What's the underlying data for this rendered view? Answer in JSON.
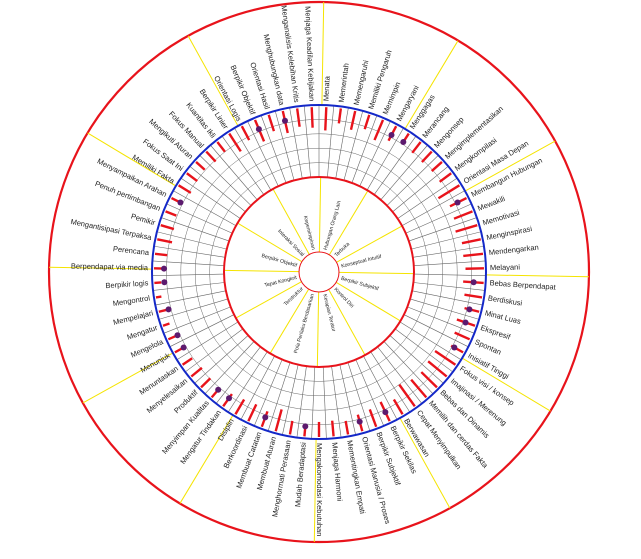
{
  "colors": {
    "outer_ring": "#e8131b",
    "blue_ring": "#1428c8",
    "sector_line": "#f5e400",
    "grid": "#666666",
    "bar": "#e8131b",
    "dot": "#5c1a6e",
    "text": "#222222"
  },
  "traits": [
    {
      "label": "Menata",
      "level": 0.34,
      "dot": false
    },
    {
      "label": "Memerintah",
      "level": 0.22,
      "dot": false
    },
    {
      "label": "Memengaruhi",
      "level": 0.28,
      "dot": false
    },
    {
      "label": "Memiliki Pengaruh",
      "level": 0.22,
      "dot": false
    },
    {
      "label": "Memimpin",
      "level": 0.32,
      "dot": false
    },
    {
      "label": "Mengaryani",
      "level": 0.24,
      "dot": true
    },
    {
      "label": "Menggagas",
      "level": 0.17,
      "dot": true
    },
    {
      "label": "Merancang",
      "level": 0.2,
      "dot": false
    },
    {
      "label": "Mengonsep",
      "level": 0.21,
      "dot": false
    },
    {
      "label": "Mengimplementasikan",
      "level": 0.2,
      "dot": false
    },
    {
      "label": "Mengkompilasi",
      "level": 0.21,
      "dot": false
    },
    {
      "label": "Orientasi Masa Depan",
      "level": 0.36,
      "dot": false
    },
    {
      "label": "Membangun Hubungan",
      "level": 0.27,
      "dot": true
    },
    {
      "label": "Mewakili",
      "level": 0.29,
      "dot": false
    },
    {
      "label": "Memotivasi",
      "level": 0.33,
      "dot": false
    },
    {
      "label": "Menginspirasi",
      "level": 0.28,
      "dot": false
    },
    {
      "label": "Mendengarkan",
      "level": 0.29,
      "dot": false
    },
    {
      "label": "Melayani",
      "level": 0.27,
      "dot": false
    },
    {
      "label": "Bebas Berpendapat",
      "level": 0.3,
      "dot": true
    },
    {
      "label": "Berdiskusi",
      "level": 0.26,
      "dot": false
    },
    {
      "label": "Minat Luas",
      "level": 0.22,
      "dot": true
    },
    {
      "label": "Ekspresif",
      "level": 0.28,
      "dot": true
    },
    {
      "label": "Spontan",
      "level": 0.24,
      "dot": false
    },
    {
      "label": "Inisiatif Tinggi",
      "level": 0.2,
      "dot": true
    },
    {
      "label": "Fokus visi / konsep",
      "level": 0.36,
      "dot": false
    },
    {
      "label": "Imajinasi / Merenung",
      "level": 0.35,
      "dot": false
    },
    {
      "label": "Bebas dan Dinamis",
      "level": 0.32,
      "dot": false
    },
    {
      "label": "Memilih dan cerdas Fakta",
      "level": 0.34,
      "dot": false
    },
    {
      "label": "Cepat Menyimpulkan",
      "level": 0.39,
      "dot": false
    },
    {
      "label": "Berwawasan",
      "level": 0.25,
      "dot": false
    },
    {
      "label": "Berpikir Sekilas",
      "level": 0.31,
      "dot": true
    },
    {
      "label": "Berpikir Subjektif",
      "level": 0.27,
      "dot": false
    },
    {
      "label": "Orientasi Manusia / Proses",
      "level": 0.25,
      "dot": true
    },
    {
      "label": "Mementingkan Empati",
      "level": 0.2,
      "dot": false
    },
    {
      "label": "Menjaga Harmoni",
      "level": 0.23,
      "dot": false
    },
    {
      "label": "Mengakomodasi Kebutuhan",
      "level": 0.22,
      "dot": false
    },
    {
      "label": "Mudah Beradaptasi",
      "level": 0.18,
      "dot": true
    },
    {
      "label": "Menghormati Perasaan",
      "level": 0.2,
      "dot": false
    },
    {
      "label": "Membuat Aturan",
      "level": 0.33,
      "dot": false
    },
    {
      "label": "Membuat Catatan",
      "level": 0.24,
      "dot": true
    },
    {
      "label": "Berkoordinasi",
      "level": 0.27,
      "dot": false
    },
    {
      "label": "Disiplin",
      "level": 0.25,
      "dot": false
    },
    {
      "label": "Mengatur Tindakan",
      "level": 0.22,
      "dot": true
    },
    {
      "label": "Menyimpan Kualitas",
      "level": 0.17,
      "dot": true
    },
    {
      "label": "Produktif",
      "level": 0.19,
      "dot": false
    },
    {
      "label": "Menyelesaikan",
      "level": 0.2,
      "dot": false
    },
    {
      "label": "Menuntaskan",
      "level": 0.17,
      "dot": false
    },
    {
      "label": "Menunjuk",
      "level": 0.15,
      "dot": true
    },
    {
      "label": "Mengelola",
      "level": 0.18,
      "dot": true
    },
    {
      "label": "Mengatur",
      "level": 0.1,
      "dot": false
    },
    {
      "label": "Mempelajari",
      "level": 0.12,
      "dot": true
    },
    {
      "label": "Mengontrol",
      "level": 0.08,
      "dot": false
    },
    {
      "label": "Berpikir logis",
      "level": 0.1,
      "dot": true
    },
    {
      "label": "Berpendapat via media",
      "level": 0.14,
      "dot": true
    },
    {
      "label": "Perencana",
      "level": 0.18,
      "dot": false
    },
    {
      "label": "Mengantisipasi Terpaksa",
      "level": 0.22,
      "dot": false
    },
    {
      "label": "Pemikir",
      "level": 0.2,
      "dot": false
    },
    {
      "label": "Penuh pertimbangan",
      "level": 0.17,
      "dot": false
    },
    {
      "label": "Menyampaikan Arahan",
      "level": 0.16,
      "dot": true
    },
    {
      "label": "Memiliki Fakta",
      "level": 0.21,
      "dot": false
    },
    {
      "label": "Fokus Saat Ini",
      "level": 0.19,
      "dot": false
    },
    {
      "label": "Mengikuti Aturan",
      "level": 0.17,
      "dot": false
    },
    {
      "label": "Fokus Manual",
      "level": 0.2,
      "dot": false
    },
    {
      "label": "Kuantitas Ikli",
      "level": 0.18,
      "dot": false
    },
    {
      "label": "Berpikir Linier",
      "level": 0.31,
      "dot": false
    },
    {
      "label": "Orientasi Logis",
      "level": 0.23,
      "dot": false
    },
    {
      "label": "Berpikir Objektif",
      "level": 0.34,
      "dot": true
    },
    {
      "label": "Orientasi Hasil",
      "level": 0.25,
      "dot": false
    },
    {
      "label": "Menghubungkan data",
      "level": 0.33,
      "dot": true
    },
    {
      "label": "Menganalisis Kelebihan Kritis",
      "level": 0.27,
      "dot": false
    },
    {
      "label": "Menjaga Keadilan Kebijakan",
      "level": 0.3,
      "dot": false
    }
  ],
  "groups": [
    "Hubungan Orang Lain",
    "Terbuka",
    "Konseptual Intuitif",
    "Berpikir Subjektif",
    "Kontrol Diri",
    "Kerapian Teratur",
    "Pola Perilaku Berdasarkan",
    "Terstruktur",
    "Tepat Kongkrit",
    "Berpikir Objektif",
    "Interaksi Sosial",
    "Kepemimpinan"
  ]
}
